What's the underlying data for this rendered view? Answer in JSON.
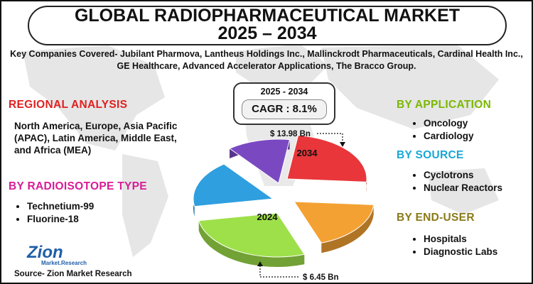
{
  "header": {
    "title_line1": "GLOBAL RADIOPHARMACEUTICAL MARKET",
    "title_line2": "2025 – 2034",
    "key_companies": "Key Companies Covered- Jubilant Pharmova, Lantheus Holdings Inc., Mallinckrodt Pharmaceuticals, Cardinal Health Inc., GE Healthcare, Advanced Accelerator Applications, The Bracco Group."
  },
  "regional": {
    "title": "REGIONAL ANALYSIS",
    "text": "North America, Europe, Asia Pacific (APAC), Latin America, Middle East, and Africa (MEA)"
  },
  "radioisotope": {
    "title": "BY RADIOISOTOPE TYPE",
    "items": [
      "Technetium-99",
      "Fluorine-18"
    ]
  },
  "application": {
    "title": "BY APPLICATION",
    "items": [
      "Oncology",
      "Cardiology"
    ]
  },
  "source_seg": {
    "title": "BY SOURCE",
    "items": [
      "Cyclotrons",
      "Nuclear Reactors"
    ]
  },
  "end_user": {
    "title": "BY END-USER",
    "items": [
      "Hospitals",
      "Diagnostic Labs"
    ]
  },
  "cagr": {
    "period": "2025 - 2034",
    "label": "CAGR : 8.1%"
  },
  "chart_data": {
    "type": "pie",
    "slices": [
      {
        "label": "2034",
        "value": 13.98,
        "annotation": "$ 13.98 Bn",
        "color": "#e8363a"
      },
      {
        "label": "",
        "color": "#f4a133"
      },
      {
        "label": "2024",
        "value": 6.45,
        "annotation": "$ 6.45 Bn",
        "color": "#9ee04a"
      },
      {
        "label": "",
        "color": "#2f9fe0"
      },
      {
        "label": "",
        "color": "#7a49c2"
      }
    ]
  },
  "logo": {
    "name": "Zion",
    "sub": "Market.Research"
  },
  "source_text": "Source- Zion Market Research",
  "colors": {
    "regional": "#e02020",
    "radioisotope": "#d81b96",
    "application": "#7ab800",
    "source": "#19a7d6",
    "end_user": "#8a7a18",
    "map": "#e3e3e3"
  }
}
